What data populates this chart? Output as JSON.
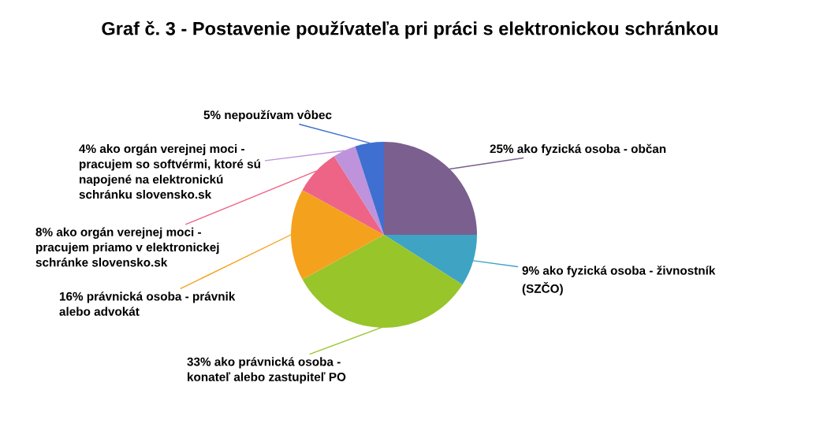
{
  "chart_data": {
    "type": "pie",
    "title": "Graf č. 3 - Postavenie používateľa pri práci s elektronickou schránkou",
    "categories": [
      "ako fyzická osoba - občan",
      "ako fyzická osoba - živnostník\n(SZČO)",
      "ako právnická osoba -\nkonateľ alebo zastupiteľ PO",
      "právnická osoba - právnik\nalebo advokát",
      "ako orgán verejnej moci -\npracujem priamo v elektronickej\nschránke slovensko.sk",
      "ako orgán verejnej moci -\npracujem so softvérmi, ktoré sú\nnapojené na elektronickú\nschránku slovensko.sk",
      "nepoužívam vôbec"
    ],
    "values": [
      25,
      9,
      33,
      16,
      8,
      4,
      5
    ],
    "value_labels": [
      "25%",
      "9%",
      "33%",
      "16%",
      "8%",
      "4%",
      "5%"
    ],
    "colors": [
      "#7b5f8f",
      "#3fa3c4",
      "#97c52a",
      "#f4a21d",
      "#ee6486",
      "#be93dc",
      "#3f6fd0"
    ]
  }
}
